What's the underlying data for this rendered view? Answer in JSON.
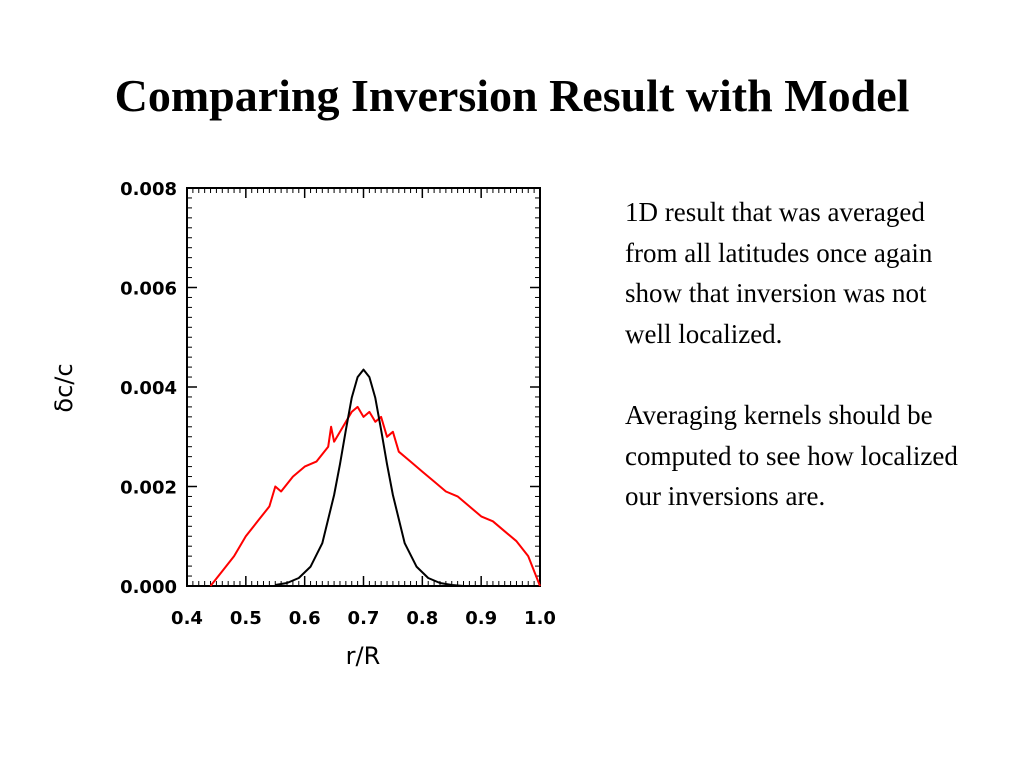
{
  "slide": {
    "title": "Comparing Inversion Result with Model",
    "paragraphs": [
      "1D result that was averaged from all latitudes once again show that inversion was not well localized.",
      "Averaging kernels should be computed to see how localized our inversions are."
    ]
  },
  "chart_data": {
    "type": "line",
    "xlabel": "r/R",
    "ylabel": "δc/c",
    "xlim": [
      0.4,
      1.0
    ],
    "ylim": [
      0.0,
      0.008
    ],
    "xticks": [
      "0.4",
      "0.5",
      "0.6",
      "0.7",
      "0.8",
      "0.9",
      "1.0"
    ],
    "yticks": [
      "0.000",
      "0.002",
      "0.004",
      "0.006",
      "0.008"
    ],
    "grid": false,
    "series": [
      {
        "color": "#ff0000",
        "x": [
          0.44,
          0.46,
          0.48,
          0.5,
          0.52,
          0.54,
          0.55,
          0.56,
          0.58,
          0.6,
          0.62,
          0.64,
          0.645,
          0.65,
          0.66,
          0.67,
          0.68,
          0.69,
          0.7,
          0.71,
          0.72,
          0.73,
          0.74,
          0.75,
          0.76,
          0.78,
          0.8,
          0.82,
          0.84,
          0.86,
          0.88,
          0.9,
          0.92,
          0.94,
          0.96,
          0.98,
          1.0
        ],
        "y": [
          0.0,
          0.0003,
          0.0006,
          0.001,
          0.0013,
          0.0016,
          0.002,
          0.0019,
          0.0022,
          0.0024,
          0.0025,
          0.0028,
          0.0032,
          0.0029,
          0.0031,
          0.0033,
          0.0035,
          0.0036,
          0.0034,
          0.0035,
          0.0033,
          0.0034,
          0.003,
          0.0031,
          0.0027,
          0.0025,
          0.0023,
          0.0021,
          0.0019,
          0.0018,
          0.0016,
          0.0014,
          0.0013,
          0.0011,
          0.0009,
          0.0006,
          0.0
        ]
      },
      {
        "color": "#000000",
        "x": [
          0.55,
          0.57,
          0.59,
          0.61,
          0.63,
          0.65,
          0.66,
          0.67,
          0.68,
          0.69,
          0.7,
          0.71,
          0.72,
          0.73,
          0.74,
          0.75,
          0.77,
          0.79,
          0.81,
          0.83,
          0.85,
          0.87
        ],
        "y": [
          2e-05,
          6e-05,
          0.00016,
          0.00039,
          0.00086,
          0.00183,
          0.00245,
          0.00314,
          0.00378,
          0.0042,
          0.00435,
          0.0042,
          0.00378,
          0.00314,
          0.00245,
          0.00183,
          0.00086,
          0.00039,
          0.00016,
          6e-05,
          2e-05,
          0.0
        ]
      }
    ]
  }
}
